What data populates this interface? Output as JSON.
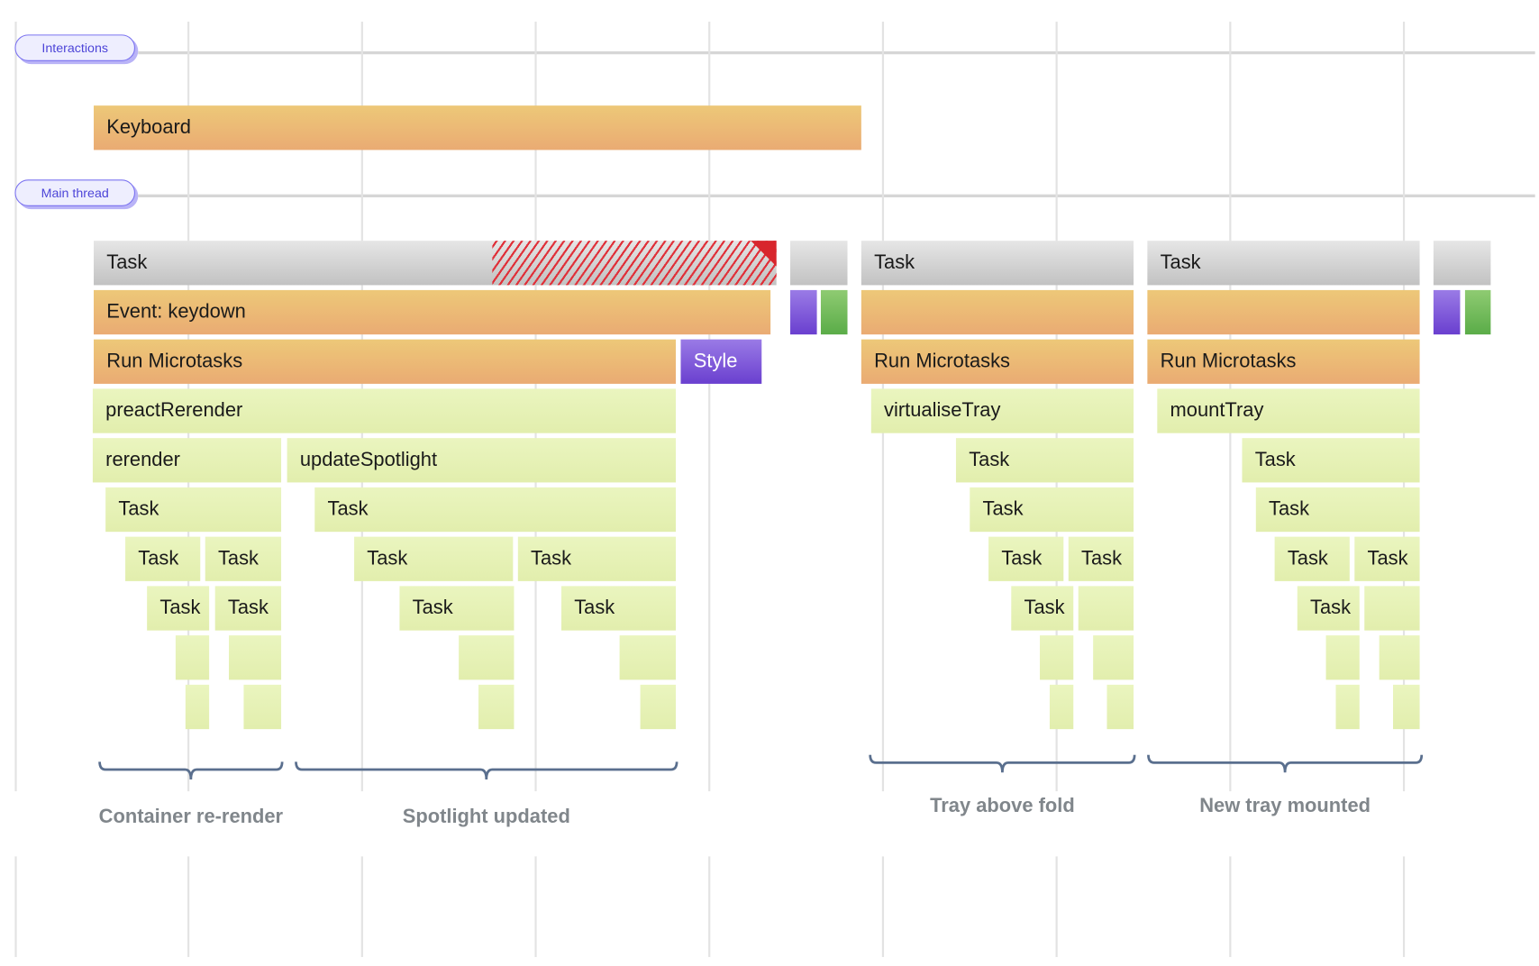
{
  "tracks": {
    "interactions": "Interactions",
    "main_thread": "Main thread"
  },
  "interaction": {
    "label": "Keyboard",
    "category": "event"
  },
  "long_task_warning": {
    "color": "#d8262d"
  },
  "colors": {
    "task": "#d4d4d4",
    "event": "#ebb975",
    "style": "#7d58da",
    "paint": "#72bb5c",
    "script": "#e6f2b6",
    "pill": "#7b73f0"
  },
  "flame": [
    {
      "label": "Task",
      "category": "task"
    },
    {
      "label": "",
      "category": "task"
    },
    {
      "label": "Event: keydown",
      "category": "event"
    },
    {
      "label": "",
      "category": "style"
    },
    {
      "label": "",
      "category": "paint"
    },
    {
      "label": "Run Microtasks",
      "category": "event"
    },
    {
      "label": "Style",
      "category": "style"
    },
    {
      "label": "preactRerender",
      "category": "script"
    },
    {
      "label": "rerender",
      "category": "script"
    },
    {
      "label": "updateSpotlight",
      "category": "script"
    },
    {
      "label": "Task",
      "category": "script"
    },
    {
      "label": "Task",
      "category": "script"
    },
    {
      "label": "Task",
      "category": "script"
    },
    {
      "label": "Task",
      "category": "script"
    },
    {
      "label": "Task",
      "category": "script"
    },
    {
      "label": "Task",
      "category": "script"
    },
    {
      "label": "Task",
      "category": "script"
    },
    {
      "label": "Task",
      "category": "script"
    },
    {
      "label": "Task",
      "category": "script"
    },
    {
      "label": "Task",
      "category": "script"
    },
    {
      "label": "",
      "category": "script"
    },
    {
      "label": "",
      "category": "script"
    },
    {
      "label": "",
      "category": "script"
    },
    {
      "label": "",
      "category": "script"
    },
    {
      "label": "",
      "category": "script"
    },
    {
      "label": "",
      "category": "script"
    },
    {
      "label": "",
      "category": "script"
    },
    {
      "label": "",
      "category": "script"
    },
    {
      "label": "Task",
      "category": "task"
    },
    {
      "label": "",
      "category": "event"
    },
    {
      "label": "Run Microtasks",
      "category": "event"
    },
    {
      "label": "virtualiseTray",
      "category": "script"
    },
    {
      "label": "Task",
      "category": "script"
    },
    {
      "label": "Task",
      "category": "script"
    },
    {
      "label": "Task",
      "category": "script"
    },
    {
      "label": "Task",
      "category": "script"
    },
    {
      "label": "Task",
      "category": "script"
    },
    {
      "label": "",
      "category": "script"
    },
    {
      "label": "",
      "category": "script"
    },
    {
      "label": "",
      "category": "script"
    },
    {
      "label": "",
      "category": "script"
    },
    {
      "label": "",
      "category": "script"
    },
    {
      "label": "Task",
      "category": "task"
    },
    {
      "label": "",
      "category": "event"
    },
    {
      "label": "Run Microtasks",
      "category": "event"
    },
    {
      "label": "mountTray",
      "category": "script"
    },
    {
      "label": "Task",
      "category": "script"
    },
    {
      "label": "Task",
      "category": "script"
    },
    {
      "label": "Task",
      "category": "script"
    },
    {
      "label": "Task",
      "category": "script"
    },
    {
      "label": "Task",
      "category": "script"
    },
    {
      "label": "",
      "category": "script"
    },
    {
      "label": "",
      "category": "script"
    },
    {
      "label": "",
      "category": "script"
    },
    {
      "label": "",
      "category": "script"
    },
    {
      "label": "",
      "category": "script"
    },
    {
      "label": "",
      "category": "task"
    },
    {
      "label": "",
      "category": "style"
    },
    {
      "label": "",
      "category": "paint"
    }
  ],
  "annotations": [
    {
      "label": "Container re-render"
    },
    {
      "label": "Spotlight updated"
    },
    {
      "label": "Tray above fold"
    },
    {
      "label": "New tray mounted"
    }
  ]
}
